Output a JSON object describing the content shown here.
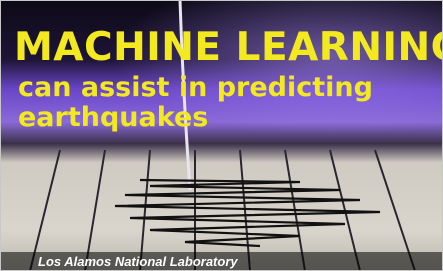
{
  "headline": {
    "line1": "MACHINE LEARNING",
    "line2": "can assist in predicting",
    "line3": "earthquakes"
  },
  "caption": "Los Alamos National Laboratory"
}
